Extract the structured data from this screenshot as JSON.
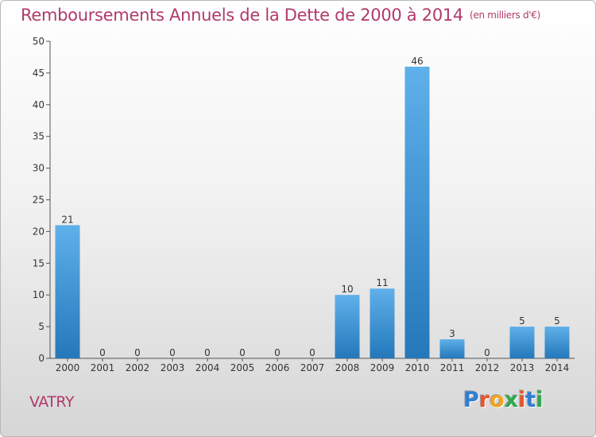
{
  "title": "Remboursements Annuels de la Dette de 2000 à 2014",
  "unit": "(en milliers d'€)",
  "commune": "VATRY",
  "logo": {
    "text": "Proxiti",
    "letter_colors": [
      "#2f7fd0",
      "#e8542c",
      "#f2a51f",
      "#2fa84f",
      "#e8542c",
      "#2f7fd0",
      "#2fa84f"
    ]
  },
  "colors": {
    "title": "#b03a6a",
    "bar_light": "#5fb0ea",
    "bar_dark": "#2478ba"
  },
  "chart_data": {
    "type": "bar",
    "title": "Remboursements Annuels de la Dette de 2000 à 2014",
    "xlabel": "",
    "ylabel": "",
    "ylim": [
      0,
      50
    ],
    "yticks": [
      0,
      5,
      10,
      15,
      20,
      25,
      30,
      35,
      40,
      45,
      50
    ],
    "grid": false,
    "categories": [
      "2000",
      "2001",
      "2002",
      "2003",
      "2004",
      "2005",
      "2006",
      "2007",
      "2008",
      "2009",
      "2010",
      "2011",
      "2012",
      "2013",
      "2014"
    ],
    "values": [
      21,
      0,
      0,
      0,
      0,
      0,
      0,
      0,
      10,
      11,
      46,
      3,
      0,
      5,
      5
    ]
  }
}
